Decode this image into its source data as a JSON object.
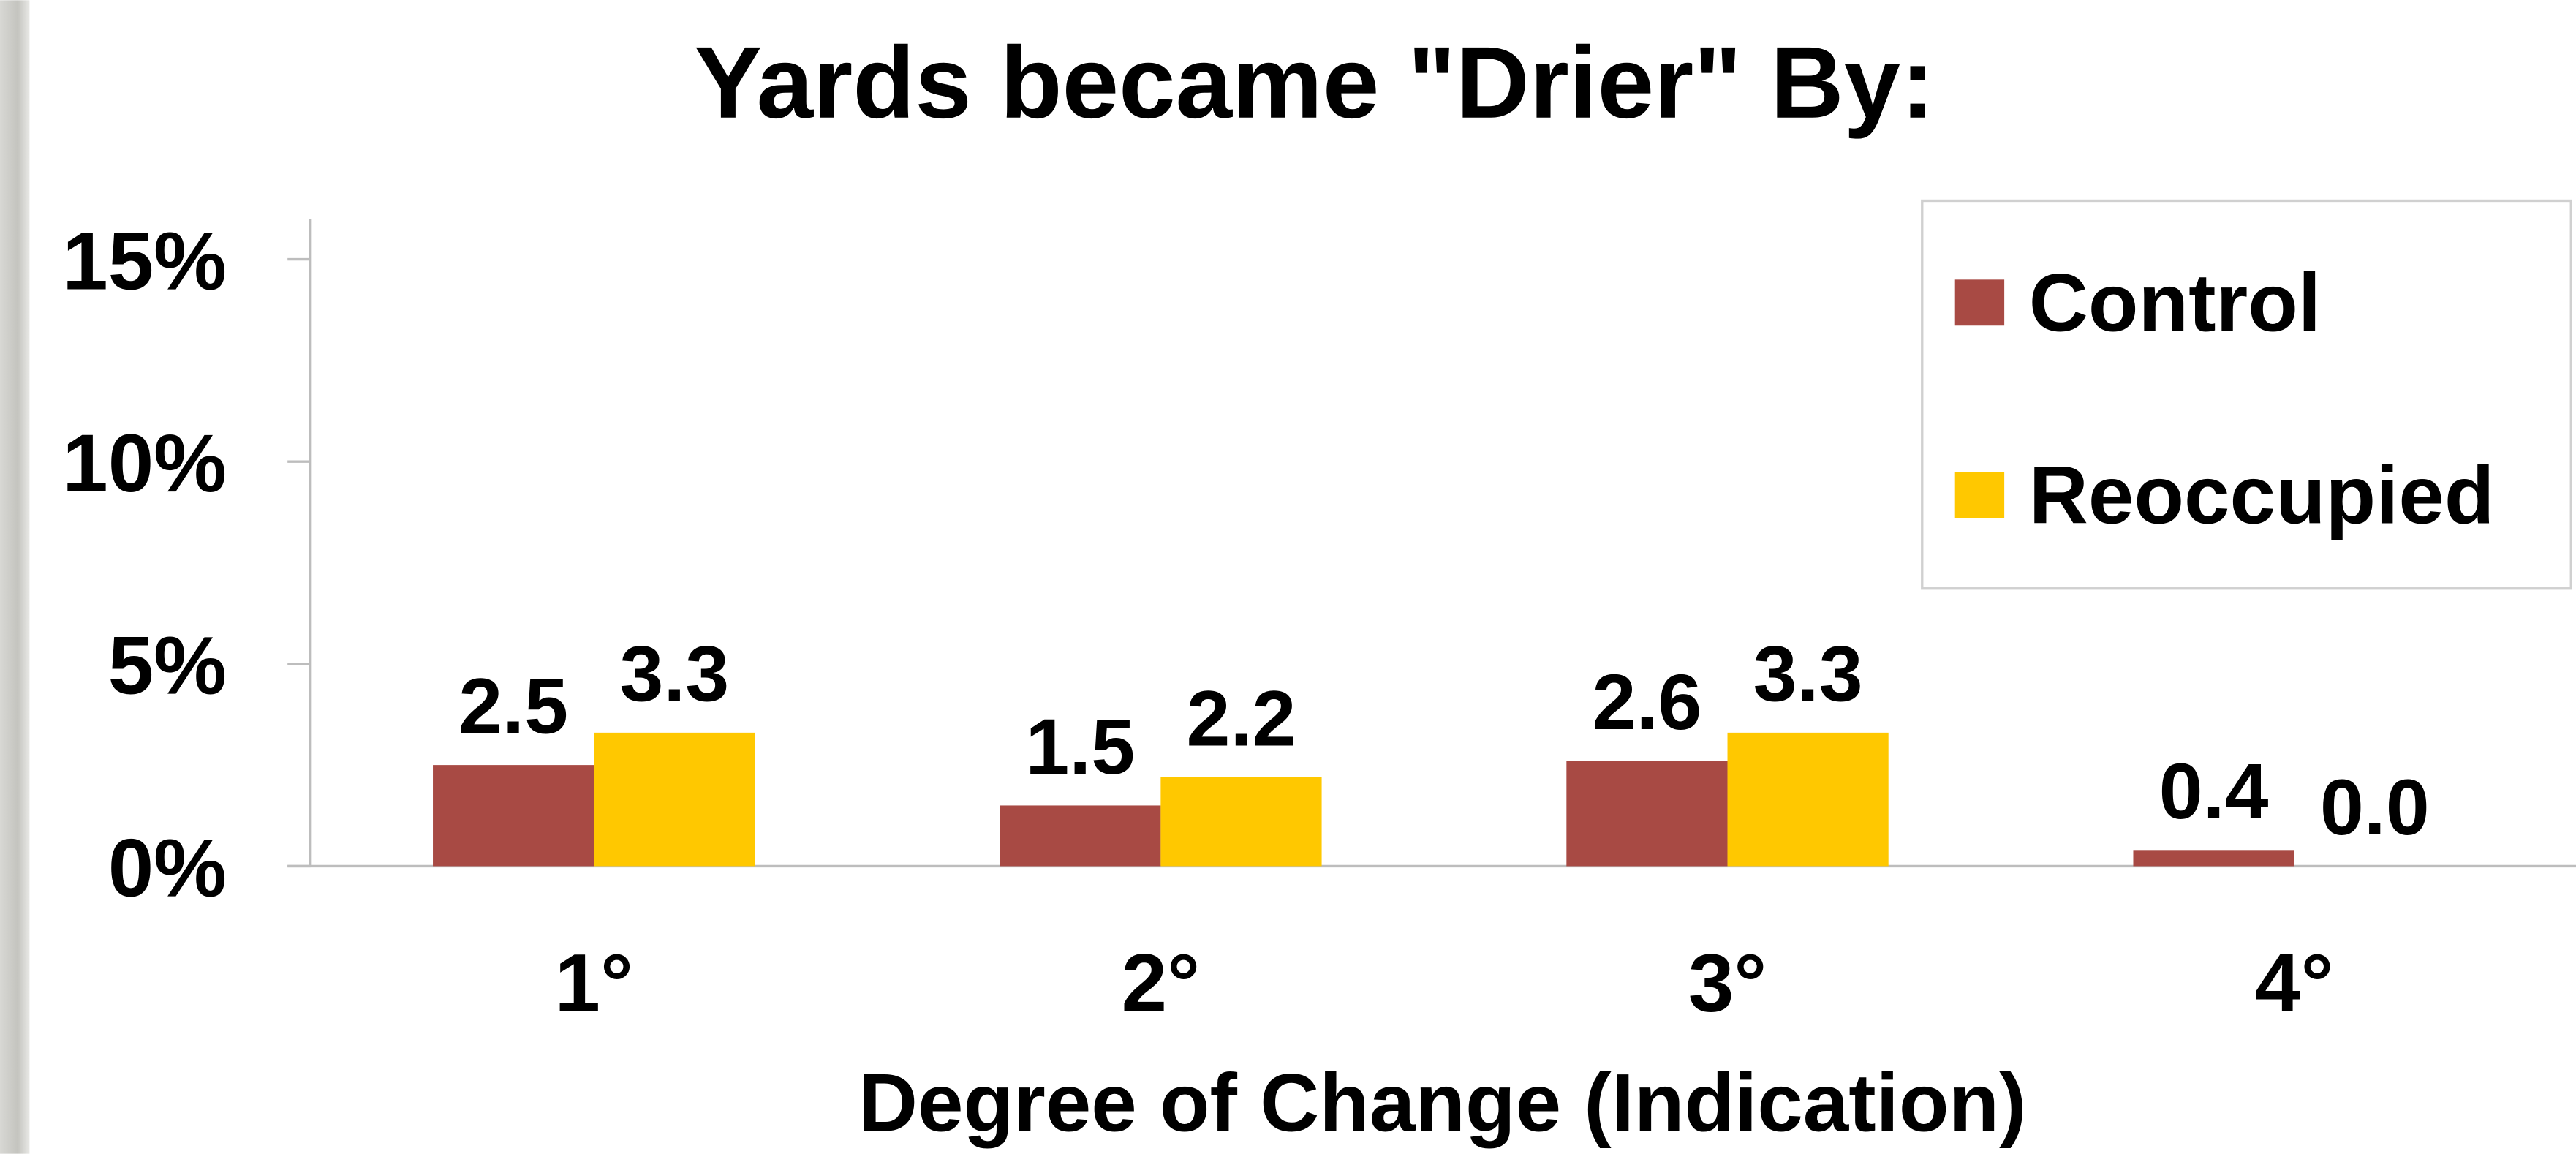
{
  "chart_data": {
    "type": "bar",
    "title": "Yards became \"Drier\" By:",
    "x_label": "Degree of Change (Indication)",
    "categories": [
      "1°",
      "2°",
      "3°",
      "4°"
    ],
    "series": [
      {
        "name": "Control",
        "color": "#a84a44",
        "values": [
          2.5,
          1.5,
          2.6,
          0.4
        ],
        "value_labels": [
          "2.5",
          "1.5",
          "2.6",
          "0.4"
        ]
      },
      {
        "name": "Reoccupied",
        "color": "#ffc800",
        "values": [
          3.3,
          2.2,
          3.3,
          0
        ],
        "value_labels": [
          "3.3",
          "2.2",
          "3.3",
          "0.0"
        ]
      }
    ],
    "ylim": [
      0,
      16
    ],
    "yticks": [
      {
        "value": 0,
        "label": "0%"
      },
      {
        "value": 5,
        "label": "5%"
      },
      {
        "value": 10,
        "label": "10%"
      },
      {
        "value": 15,
        "label": "15%"
      }
    ],
    "grid": false,
    "legend": "upper right"
  }
}
